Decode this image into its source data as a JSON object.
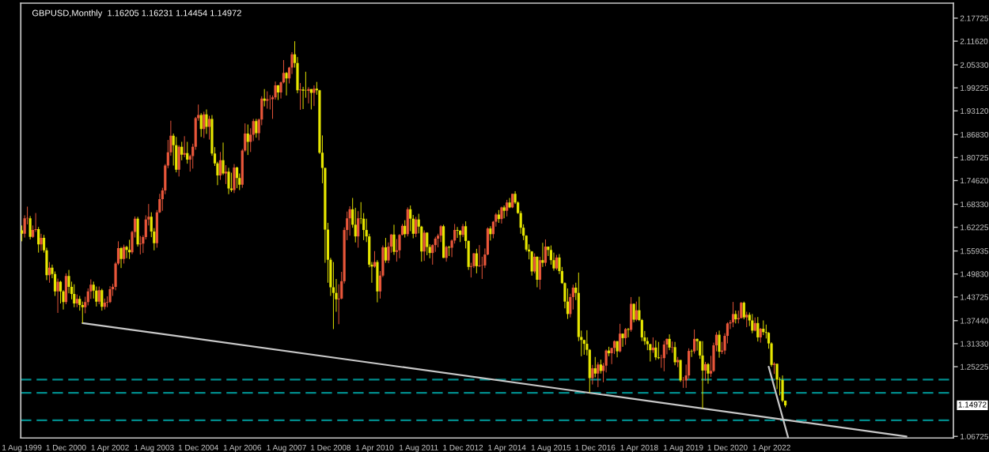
{
  "chart_data": {
    "type": "candlestick",
    "title": "GBPUSD,Monthly  1.16205 1.16231 1.14454 1.14972",
    "x": [
      "1999-08",
      "1999-09",
      "1999-10",
      "1999-11",
      "1999-12",
      "2000-01",
      "2000-02",
      "2000-03",
      "2000-04",
      "2000-05",
      "2000-06",
      "2000-07",
      "2000-08",
      "2000-09",
      "2000-10",
      "2000-11",
      "2000-12",
      "2001-01",
      "2001-02",
      "2001-03",
      "2001-04",
      "2001-05",
      "2001-06",
      "2001-07",
      "2001-08",
      "2001-09",
      "2001-10",
      "2001-11",
      "2001-12",
      "2002-01",
      "2002-02",
      "2002-03",
      "2002-04",
      "2002-05",
      "2002-06",
      "2002-07",
      "2002-08",
      "2002-09",
      "2002-10",
      "2002-11",
      "2002-12",
      "2003-01",
      "2003-02",
      "2003-03",
      "2003-04",
      "2003-05",
      "2003-06",
      "2003-07",
      "2003-08",
      "2003-09",
      "2003-10",
      "2003-11",
      "2003-12",
      "2004-01",
      "2004-02",
      "2004-03",
      "2004-04",
      "2004-05",
      "2004-06",
      "2004-07",
      "2004-08",
      "2004-09",
      "2004-10",
      "2004-11",
      "2004-12",
      "2005-01",
      "2005-02",
      "2005-03",
      "2005-04",
      "2005-05",
      "2005-06",
      "2005-07",
      "2005-08",
      "2005-09",
      "2005-10",
      "2005-11",
      "2005-12",
      "2006-01",
      "2006-02",
      "2006-03",
      "2006-04",
      "2006-05",
      "2006-06",
      "2006-07",
      "2006-08",
      "2006-09",
      "2006-10",
      "2006-11",
      "2006-12",
      "2007-01",
      "2007-02",
      "2007-03",
      "2007-04",
      "2007-05",
      "2007-06",
      "2007-07",
      "2007-08",
      "2007-09",
      "2007-10",
      "2007-11",
      "2007-12",
      "2008-01",
      "2008-02",
      "2008-03",
      "2008-04",
      "2008-05",
      "2008-06",
      "2008-07",
      "2008-08",
      "2008-09",
      "2008-10",
      "2008-11",
      "2008-12",
      "2009-01",
      "2009-02",
      "2009-03",
      "2009-04",
      "2009-05",
      "2009-06",
      "2009-07",
      "2009-08",
      "2009-09",
      "2009-10",
      "2009-11",
      "2009-12",
      "2010-01",
      "2010-02",
      "2010-03",
      "2010-04",
      "2010-05",
      "2010-06",
      "2010-07",
      "2010-08",
      "2010-09",
      "2010-10",
      "2010-11",
      "2010-12",
      "2011-01",
      "2011-02",
      "2011-03",
      "2011-04",
      "2011-05",
      "2011-06",
      "2011-07",
      "2011-08",
      "2011-09",
      "2011-10",
      "2011-11",
      "2011-12",
      "2012-01",
      "2012-02",
      "2012-03",
      "2012-04",
      "2012-05",
      "2012-06",
      "2012-07",
      "2012-08",
      "2012-09",
      "2012-10",
      "2012-11",
      "2012-12",
      "2013-01",
      "2013-02",
      "2013-03",
      "2013-04",
      "2013-05",
      "2013-06",
      "2013-07",
      "2013-08",
      "2013-09",
      "2013-10",
      "2013-11",
      "2013-12",
      "2014-01",
      "2014-02",
      "2014-03",
      "2014-04",
      "2014-05",
      "2014-06",
      "2014-07",
      "2014-08",
      "2014-09",
      "2014-10",
      "2014-11",
      "2014-12",
      "2015-01",
      "2015-02",
      "2015-03",
      "2015-04",
      "2015-05",
      "2015-06",
      "2015-07",
      "2015-08",
      "2015-09",
      "2015-10",
      "2015-11",
      "2015-12",
      "2016-01",
      "2016-02",
      "2016-03",
      "2016-04",
      "2016-05",
      "2016-06",
      "2016-07",
      "2016-08",
      "2016-09",
      "2016-10",
      "2016-11",
      "2016-12",
      "2017-01",
      "2017-02",
      "2017-03",
      "2017-04",
      "2017-05",
      "2017-06",
      "2017-07",
      "2017-08",
      "2017-09",
      "2017-10",
      "2017-11",
      "2017-12",
      "2018-01",
      "2018-02",
      "2018-03",
      "2018-04",
      "2018-05",
      "2018-06",
      "2018-07",
      "2018-08",
      "2018-09",
      "2018-10",
      "2018-11",
      "2018-12",
      "2019-01",
      "2019-02",
      "2019-03",
      "2019-04",
      "2019-05",
      "2019-06",
      "2019-07",
      "2019-08",
      "2019-09",
      "2019-10",
      "2019-11",
      "2019-12",
      "2020-01",
      "2020-02",
      "2020-03",
      "2020-04",
      "2020-05",
      "2020-06",
      "2020-07",
      "2020-08",
      "2020-09",
      "2020-10",
      "2020-11",
      "2020-12",
      "2021-01",
      "2021-02",
      "2021-03",
      "2021-04",
      "2021-05",
      "2021-06",
      "2021-07",
      "2021-08",
      "2021-09",
      "2021-10",
      "2021-11",
      "2021-12",
      "2022-01",
      "2022-02",
      "2022-03",
      "2022-04",
      "2022-05",
      "2022-06",
      "2022-07",
      "2022-08",
      "2022-09"
    ],
    "ohlc": [
      [
        1.614,
        1.627,
        1.585,
        1.605
      ],
      [
        1.605,
        1.654,
        1.595,
        1.646
      ],
      [
        1.646,
        1.677,
        1.63,
        1.646
      ],
      [
        1.646,
        1.652,
        1.59,
        1.597
      ],
      [
        1.597,
        1.627,
        1.594,
        1.615
      ],
      [
        1.615,
        1.66,
        1.61,
        1.617
      ],
      [
        1.617,
        1.623,
        1.555,
        1.577
      ],
      [
        1.577,
        1.605,
        1.56,
        1.594
      ],
      [
        1.594,
        1.602,
        1.555,
        1.561
      ],
      [
        1.561,
        1.568,
        1.482,
        1.495
      ],
      [
        1.495,
        1.53,
        1.475,
        1.515
      ],
      [
        1.515,
        1.523,
        1.487,
        1.498
      ],
      [
        1.498,
        1.505,
        1.44,
        1.452
      ],
      [
        1.452,
        1.486,
        1.395,
        1.478
      ],
      [
        1.478,
        1.48,
        1.42,
        1.452
      ],
      [
        1.452,
        1.455,
        1.404,
        1.424
      ],
      [
        1.424,
        1.5,
        1.418,
        1.493
      ],
      [
        1.493,
        1.509,
        1.447,
        1.464
      ],
      [
        1.464,
        1.478,
        1.431,
        1.445
      ],
      [
        1.445,
        1.471,
        1.41,
        1.42
      ],
      [
        1.42,
        1.444,
        1.41,
        1.432
      ],
      [
        1.432,
        1.44,
        1.401,
        1.416
      ],
      [
        1.416,
        1.425,
        1.368,
        1.41
      ],
      [
        1.41,
        1.438,
        1.394,
        1.424
      ],
      [
        1.424,
        1.46,
        1.415,
        1.452
      ],
      [
        1.452,
        1.484,
        1.432,
        1.47
      ],
      [
        1.47,
        1.478,
        1.433,
        1.454
      ],
      [
        1.454,
        1.465,
        1.412,
        1.425
      ],
      [
        1.425,
        1.465,
        1.418,
        1.455
      ],
      [
        1.455,
        1.459,
        1.401,
        1.411
      ],
      [
        1.411,
        1.433,
        1.404,
        1.422
      ],
      [
        1.422,
        1.439,
        1.41,
        1.424
      ],
      [
        1.424,
        1.466,
        1.421,
        1.458
      ],
      [
        1.458,
        1.472,
        1.44,
        1.464
      ],
      [
        1.464,
        1.53,
        1.455,
        1.526
      ],
      [
        1.526,
        1.585,
        1.522,
        1.567
      ],
      [
        1.567,
        1.57,
        1.514,
        1.538
      ],
      [
        1.538,
        1.576,
        1.526,
        1.57
      ],
      [
        1.57,
        1.573,
        1.54,
        1.562
      ],
      [
        1.562,
        1.589,
        1.538,
        1.556
      ],
      [
        1.556,
        1.613,
        1.551,
        1.61
      ],
      [
        1.61,
        1.651,
        1.595,
        1.645
      ],
      [
        1.645,
        1.65,
        1.571,
        1.577
      ],
      [
        1.577,
        1.599,
        1.55,
        1.579
      ],
      [
        1.579,
        1.601,
        1.554,
        1.596
      ],
      [
        1.596,
        1.654,
        1.59,
        1.643
      ],
      [
        1.643,
        1.684,
        1.627,
        1.65
      ],
      [
        1.65,
        1.662,
        1.596,
        1.611
      ],
      [
        1.611,
        1.62,
        1.561,
        1.58
      ],
      [
        1.58,
        1.668,
        1.568,
        1.662
      ],
      [
        1.662,
        1.711,
        1.66,
        1.697
      ],
      [
        1.697,
        1.727,
        1.666,
        1.72
      ],
      [
        1.72,
        1.79,
        1.71,
        1.786
      ],
      [
        1.786,
        1.854,
        1.779,
        1.821
      ],
      [
        1.821,
        1.905,
        1.812,
        1.865
      ],
      [
        1.865,
        1.871,
        1.786,
        1.84
      ],
      [
        1.84,
        1.862,
        1.768,
        1.775
      ],
      [
        1.775,
        1.84,
        1.757,
        1.836
      ],
      [
        1.836,
        1.849,
        1.8,
        1.815
      ],
      [
        1.815,
        1.864,
        1.808,
        1.819
      ],
      [
        1.819,
        1.849,
        1.791,
        1.802
      ],
      [
        1.802,
        1.815,
        1.77,
        1.811
      ],
      [
        1.811,
        1.844,
        1.778,
        1.836
      ],
      [
        1.836,
        1.915,
        1.828,
        1.912
      ],
      [
        1.912,
        1.948,
        1.905,
        1.92
      ],
      [
        1.92,
        1.925,
        1.862,
        1.883
      ],
      [
        1.883,
        1.929,
        1.859,
        1.922
      ],
      [
        1.922,
        1.935,
        1.87,
        1.889
      ],
      [
        1.889,
        1.918,
        1.855,
        1.91
      ],
      [
        1.91,
        1.92,
        1.812,
        1.818
      ],
      [
        1.818,
        1.835,
        1.785,
        1.792
      ],
      [
        1.792,
        1.796,
        1.734,
        1.76
      ],
      [
        1.76,
        1.822,
        1.748,
        1.8
      ],
      [
        1.8,
        1.847,
        1.761,
        1.765
      ],
      [
        1.765,
        1.787,
        1.737,
        1.77
      ],
      [
        1.77,
        1.78,
        1.71,
        1.725
      ],
      [
        1.725,
        1.767,
        1.716,
        1.721
      ],
      [
        1.721,
        1.79,
        1.713,
        1.781
      ],
      [
        1.781,
        1.783,
        1.726,
        1.753
      ],
      [
        1.753,
        1.765,
        1.721,
        1.735
      ],
      [
        1.735,
        1.83,
        1.727,
        1.826
      ],
      [
        1.826,
        1.898,
        1.822,
        1.871
      ],
      [
        1.871,
        1.895,
        1.814,
        1.849
      ],
      [
        1.849,
        1.885,
        1.822,
        1.868
      ],
      [
        1.868,
        1.91,
        1.851,
        1.904
      ],
      [
        1.904,
        1.91,
        1.86,
        1.872
      ],
      [
        1.872,
        1.911,
        1.853,
        1.908
      ],
      [
        1.908,
        1.97,
        1.893,
        1.964
      ],
      [
        1.964,
        1.989,
        1.943,
        1.958
      ],
      [
        1.958,
        1.983,
        1.937,
        1.962
      ],
      [
        1.962,
        1.973,
        1.935,
        1.962
      ],
      [
        1.962,
        1.972,
        1.91,
        1.967
      ],
      [
        1.967,
        2.009,
        1.961,
        1.999
      ],
      [
        1.999,
        2.0,
        1.96,
        1.98
      ],
      [
        1.98,
        2.009,
        1.964,
        2.007
      ],
      [
        2.007,
        2.066,
        2.004,
        2.032
      ],
      [
        2.032,
        2.034,
        1.972,
        2.017
      ],
      [
        2.017,
        2.048,
        2.004,
        2.046
      ],
      [
        2.046,
        2.087,
        2.029,
        2.081
      ],
      [
        2.081,
        2.116,
        2.046,
        2.058
      ],
      [
        2.058,
        2.074,
        1.978,
        1.986
      ],
      [
        1.986,
        2.005,
        1.934,
        1.988
      ],
      [
        1.988,
        1.995,
        1.936,
        1.985
      ],
      [
        1.985,
        2.035,
        1.966,
        1.984
      ],
      [
        1.984,
        1.994,
        1.951,
        1.989
      ],
      [
        1.989,
        1.989,
        1.935,
        1.979
      ],
      [
        1.979,
        1.999,
        1.944,
        1.99
      ],
      [
        1.99,
        2.008,
        1.974,
        1.986
      ],
      [
        1.986,
        1.987,
        1.817,
        1.82
      ],
      [
        1.82,
        1.866,
        1.739,
        1.78
      ],
      [
        1.78,
        1.78,
        1.528,
        1.616
      ],
      [
        1.616,
        1.634,
        1.475,
        1.536
      ],
      [
        1.536,
        1.541,
        1.44,
        1.463
      ],
      [
        1.463,
        1.53,
        1.352,
        1.448
      ],
      [
        1.448,
        1.485,
        1.398,
        1.431
      ],
      [
        1.431,
        1.471,
        1.365,
        1.433
      ],
      [
        1.433,
        1.504,
        1.431,
        1.479
      ],
      [
        1.479,
        1.622,
        1.473,
        1.615
      ],
      [
        1.615,
        1.664,
        1.588,
        1.646
      ],
      [
        1.646,
        1.678,
        1.6,
        1.67
      ],
      [
        1.67,
        1.7,
        1.621,
        1.629
      ],
      [
        1.629,
        1.674,
        1.582,
        1.598
      ],
      [
        1.598,
        1.665,
        1.568,
        1.646
      ],
      [
        1.646,
        1.689,
        1.631,
        1.645
      ],
      [
        1.645,
        1.66,
        1.588,
        1.615
      ],
      [
        1.615,
        1.645,
        1.583,
        1.598
      ],
      [
        1.598,
        1.605,
        1.516,
        1.523
      ],
      [
        1.523,
        1.53,
        1.475,
        1.518
      ],
      [
        1.518,
        1.559,
        1.515,
        1.53
      ],
      [
        1.53,
        1.535,
        1.423,
        1.452
      ],
      [
        1.452,
        1.506,
        1.433,
        1.494
      ],
      [
        1.494,
        1.574,
        1.49,
        1.569
      ],
      [
        1.569,
        1.594,
        1.528,
        1.534
      ],
      [
        1.534,
        1.582,
        1.527,
        1.571
      ],
      [
        1.571,
        1.604,
        1.555,
        1.603
      ],
      [
        1.603,
        1.629,
        1.549,
        1.557
      ],
      [
        1.557,
        1.591,
        1.531,
        1.561
      ],
      [
        1.561,
        1.604,
        1.54,
        1.602
      ],
      [
        1.602,
        1.631,
        1.601,
        1.626
      ],
      [
        1.626,
        1.641,
        1.595,
        1.604
      ],
      [
        1.604,
        1.675,
        1.598,
        1.67
      ],
      [
        1.67,
        1.68,
        1.612,
        1.645
      ],
      [
        1.645,
        1.655,
        1.593,
        1.605
      ],
      [
        1.605,
        1.65,
        1.596,
        1.643
      ],
      [
        1.643,
        1.658,
        1.606,
        1.624
      ],
      [
        1.624,
        1.626,
        1.531,
        1.558
      ],
      [
        1.558,
        1.614,
        1.533,
        1.608
      ],
      [
        1.608,
        1.609,
        1.548,
        1.57
      ],
      [
        1.57,
        1.577,
        1.54,
        1.554
      ],
      [
        1.554,
        1.577,
        1.523,
        1.575
      ],
      [
        1.575,
        1.597,
        1.557,
        1.592
      ],
      [
        1.592,
        1.605,
        1.569,
        1.6
      ],
      [
        1.6,
        1.628,
        1.583,
        1.625
      ],
      [
        1.625,
        1.629,
        1.541,
        1.541
      ],
      [
        1.541,
        1.573,
        1.531,
        1.57
      ],
      [
        1.57,
        1.573,
        1.546,
        1.568
      ],
      [
        1.568,
        1.59,
        1.543,
        1.587
      ],
      [
        1.587,
        1.631,
        1.579,
        1.615
      ],
      [
        1.615,
        1.623,
        1.594,
        1.613
      ],
      [
        1.613,
        1.615,
        1.583,
        1.602
      ],
      [
        1.602,
        1.631,
        1.596,
        1.625
      ],
      [
        1.625,
        1.638,
        1.566,
        1.586
      ],
      [
        1.586,
        1.587,
        1.509,
        1.517
      ],
      [
        1.517,
        1.528,
        1.489,
        1.519
      ],
      [
        1.519,
        1.554,
        1.514,
        1.553
      ],
      [
        1.553,
        1.565,
        1.5,
        1.519
      ],
      [
        1.519,
        1.575,
        1.517,
        1.521
      ],
      [
        1.521,
        1.544,
        1.485,
        1.521
      ],
      [
        1.521,
        1.566,
        1.514,
        1.55
      ],
      [
        1.55,
        1.622,
        1.548,
        1.619
      ],
      [
        1.619,
        1.625,
        1.587,
        1.604
      ],
      [
        1.604,
        1.639,
        1.593,
        1.637
      ],
      [
        1.637,
        1.66,
        1.624,
        1.656
      ],
      [
        1.656,
        1.668,
        1.634,
        1.644
      ],
      [
        1.644,
        1.677,
        1.632,
        1.675
      ],
      [
        1.675,
        1.68,
        1.646,
        1.666
      ],
      [
        1.666,
        1.695,
        1.651,
        1.688
      ],
      [
        1.688,
        1.7,
        1.673,
        1.675
      ],
      [
        1.675,
        1.711,
        1.673,
        1.711
      ],
      [
        1.711,
        1.718,
        1.684,
        1.688
      ],
      [
        1.688,
        1.691,
        1.658,
        1.66
      ],
      [
        1.66,
        1.666,
        1.605,
        1.621
      ],
      [
        1.621,
        1.63,
        1.588,
        1.6
      ],
      [
        1.6,
        1.601,
        1.558,
        1.563
      ],
      [
        1.563,
        1.577,
        1.537,
        1.558
      ],
      [
        1.558,
        1.559,
        1.494,
        1.505
      ],
      [
        1.505,
        1.553,
        1.5,
        1.544
      ],
      [
        1.544,
        1.545,
        1.463,
        1.483
      ],
      [
        1.483,
        1.544,
        1.457,
        1.535
      ],
      [
        1.535,
        1.581,
        1.517,
        1.528
      ],
      [
        1.528,
        1.59,
        1.519,
        1.571
      ],
      [
        1.571,
        1.571,
        1.546,
        1.562
      ],
      [
        1.562,
        1.574,
        1.523,
        1.535
      ],
      [
        1.535,
        1.555,
        1.507,
        1.513
      ],
      [
        1.513,
        1.549,
        1.509,
        1.542
      ],
      [
        1.542,
        1.551,
        1.498,
        1.506
      ],
      [
        1.506,
        1.517,
        1.472,
        1.474
      ],
      [
        1.474,
        1.476,
        1.407,
        1.425
      ],
      [
        1.425,
        1.46,
        1.379,
        1.392
      ],
      [
        1.392,
        1.446,
        1.383,
        1.437
      ],
      [
        1.437,
        1.47,
        1.404,
        1.462
      ],
      [
        1.462,
        1.475,
        1.429,
        1.448
      ],
      [
        1.448,
        1.502,
        1.32,
        1.331
      ],
      [
        1.331,
        1.348,
        1.28,
        1.323
      ],
      [
        1.323,
        1.324,
        1.284,
        1.313
      ],
      [
        1.313,
        1.349,
        1.282,
        1.297
      ],
      [
        1.297,
        1.299,
        1.184,
        1.222
      ],
      [
        1.222,
        1.257,
        1.205,
        1.248
      ],
      [
        1.248,
        1.278,
        1.224,
        1.234
      ],
      [
        1.234,
        1.264,
        1.198,
        1.258
      ],
      [
        1.258,
        1.271,
        1.234,
        1.241
      ],
      [
        1.241,
        1.262,
        1.211,
        1.255
      ],
      [
        1.255,
        1.298,
        1.237,
        1.295
      ],
      [
        1.295,
        1.305,
        1.28,
        1.288
      ],
      [
        1.288,
        1.302,
        1.259,
        1.302
      ],
      [
        1.302,
        1.322,
        1.286,
        1.32
      ],
      [
        1.32,
        1.32,
        1.277,
        1.293
      ],
      [
        1.293,
        1.366,
        1.29,
        1.34
      ],
      [
        1.34,
        1.34,
        1.305,
        1.328
      ],
      [
        1.328,
        1.355,
        1.31,
        1.352
      ],
      [
        1.352,
        1.355,
        1.33,
        1.35
      ],
      [
        1.35,
        1.437,
        1.345,
        1.419
      ],
      [
        1.419,
        1.42,
        1.37,
        1.377
      ],
      [
        1.377,
        1.425,
        1.373,
        1.402
      ],
      [
        1.402,
        1.438,
        1.373,
        1.376
      ],
      [
        1.376,
        1.379,
        1.32,
        1.33
      ],
      [
        1.33,
        1.347,
        1.31,
        1.32
      ],
      [
        1.32,
        1.33,
        1.296,
        1.312
      ],
      [
        1.312,
        1.313,
        1.266,
        1.296
      ],
      [
        1.296,
        1.33,
        1.289,
        1.303
      ],
      [
        1.303,
        1.322,
        1.27,
        1.277
      ],
      [
        1.277,
        1.318,
        1.272,
        1.275
      ],
      [
        1.275,
        1.284,
        1.249,
        1.275
      ],
      [
        1.275,
        1.321,
        1.24,
        1.311
      ],
      [
        1.311,
        1.327,
        1.285,
        1.326
      ],
      [
        1.326,
        1.338,
        1.296,
        1.303
      ],
      [
        1.303,
        1.319,
        1.289,
        1.304
      ],
      [
        1.304,
        1.318,
        1.256,
        1.264
      ],
      [
        1.264,
        1.278,
        1.251,
        1.27
      ],
      [
        1.27,
        1.27,
        1.212,
        1.216
      ],
      [
        1.216,
        1.225,
        1.196,
        1.216
      ],
      [
        1.216,
        1.258,
        1.196,
        1.229
      ],
      [
        1.229,
        1.301,
        1.22,
        1.294
      ],
      [
        1.294,
        1.298,
        1.278,
        1.293
      ],
      [
        1.293,
        1.351,
        1.287,
        1.326
      ],
      [
        1.326,
        1.327,
        1.295,
        1.32
      ],
      [
        1.32,
        1.32,
        1.273,
        1.282
      ],
      [
        1.282,
        1.32,
        1.141,
        1.242
      ],
      [
        1.242,
        1.265,
        1.215,
        1.259
      ],
      [
        1.259,
        1.262,
        1.207,
        1.234
      ],
      [
        1.234,
        1.281,
        1.225,
        1.241
      ],
      [
        1.241,
        1.316,
        1.238,
        1.309
      ],
      [
        1.309,
        1.344,
        1.293,
        1.337
      ],
      [
        1.337,
        1.348,
        1.276,
        1.292
      ],
      [
        1.292,
        1.318,
        1.286,
        1.295
      ],
      [
        1.295,
        1.341,
        1.285,
        1.334
      ],
      [
        1.334,
        1.37,
        1.314,
        1.367
      ],
      [
        1.367,
        1.376,
        1.352,
        1.37
      ],
      [
        1.37,
        1.424,
        1.357,
        1.392
      ],
      [
        1.392,
        1.401,
        1.367,
        1.378
      ],
      [
        1.378,
        1.401,
        1.367,
        1.381
      ],
      [
        1.381,
        1.424,
        1.381,
        1.422
      ],
      [
        1.422,
        1.425,
        1.378,
        1.383
      ],
      [
        1.383,
        1.398,
        1.357,
        1.39
      ],
      [
        1.39,
        1.396,
        1.36,
        1.375
      ],
      [
        1.375,
        1.392,
        1.341,
        1.348
      ],
      [
        1.348,
        1.383,
        1.346,
        1.368
      ],
      [
        1.368,
        1.384,
        1.319,
        1.33
      ],
      [
        1.33,
        1.355,
        1.316,
        1.353
      ],
      [
        1.353,
        1.375,
        1.336,
        1.344
      ],
      [
        1.344,
        1.364,
        1.327,
        1.342
      ],
      [
        1.342,
        1.344,
        1.3,
        1.314
      ],
      [
        1.314,
        1.317,
        1.252,
        1.257
      ],
      [
        1.257,
        1.264,
        1.233,
        1.26
      ],
      [
        1.26,
        1.26,
        1.193,
        1.218
      ],
      [
        1.218,
        1.224,
        1.176,
        1.217
      ],
      [
        1.217,
        1.229,
        1.158,
        1.162
      ],
      [
        1.16205,
        1.16231,
        1.14454,
        1.14972
      ]
    ],
    "colors": [
      "#e6e600",
      "#e8563a",
      "#e8563a",
      "#e6e600",
      "#e8563a",
      "#e8563a",
      "#e6e600",
      "#e8563a",
      "#e6e600",
      "#e6e600",
      "#e8563a",
      "#e6e600",
      "#e6e600",
      "#e8563a",
      "#e6e600",
      "#e6e600",
      "#e8563a",
      "#e6e600",
      "#e6e600",
      "#e6e600",
      "#e8563a",
      "#e6e600",
      "#e6e600",
      "#e8563a",
      "#e8563a",
      "#e8563a",
      "#e6e600",
      "#e6e600",
      "#e8563a",
      "#e6e600",
      "#e8563a",
      "#e8563a",
      "#e8563a",
      "#e8563a",
      "#e8563a",
      "#e8563a",
      "#e6e600",
      "#e8563a",
      "#e6e600",
      "#e6e600",
      "#e8563a",
      "#e8563a",
      "#e6e600",
      "#e8563a",
      "#e8563a",
      "#e8563a",
      "#e8563a",
      "#e6e600",
      "#e6e600",
      "#e8563a",
      "#e8563a",
      "#e8563a",
      "#e8563a",
      "#e8563a",
      "#e8563a",
      "#e6e600",
      "#e6e600",
      "#e8563a",
      "#e6e600",
      "#e8563a",
      "#e6e600",
      "#e8563a",
      "#e8563a",
      "#e8563a",
      "#e8563a",
      "#e6e600",
      "#e8563a",
      "#e6e600",
      "#e8563a",
      "#e6e600",
      "#e6e600",
      "#e6e600",
      "#e8563a",
      "#e6e600",
      "#e8563a",
      "#e6e600",
      "#e6e600",
      "#e8563a",
      "#e6e600",
      "#e6e600",
      "#e8563a",
      "#e8563a",
      "#e6e600",
      "#e8563a",
      "#e8563a",
      "#e6e600",
      "#e8563a",
      "#e8563a",
      "#e6e600",
      "#e8563a",
      "#e8563a",
      "#e8563a",
      "#e8563a",
      "#e6e600",
      "#e8563a",
      "#e8563a",
      "#e6e600",
      "#e8563a",
      "#e8563a",
      "#e6e600",
      "#e6e600",
      "#e8563a",
      "#e6e600",
      "#e6e600",
      "#e8563a",
      "#e6e600",
      "#e8563a",
      "#e6e600",
      "#e6e600",
      "#e6e600",
      "#e6e600",
      "#e6e600",
      "#e6e600",
      "#e6e600",
      "#e6e600",
      "#e8563a",
      "#e8563a",
      "#e8563a",
      "#e8563a",
      "#e8563a",
      "#e6e600",
      "#e6e600",
      "#e8563a",
      "#e6e600",
      "#e6e600",
      "#e6e600",
      "#e6e600",
      "#e6e600",
      "#e8563a",
      "#e6e600",
      "#e8563a",
      "#e8563a",
      "#e6e600",
      "#e8563a",
      "#e8563a",
      "#e6e600",
      "#e8563a",
      "#e8563a",
      "#e8563a",
      "#e6e600",
      "#e8563a",
      "#e6e600",
      "#e6e600",
      "#e8563a",
      "#e6e600",
      "#e6e600",
      "#e8563a",
      "#e6e600",
      "#e6e600",
      "#e8563a",
      "#e8563a",
      "#e8563a",
      "#e8563a",
      "#e6e600",
      "#e8563a",
      "#e6e600",
      "#e8563a",
      "#e8563a",
      "#e6e600",
      "#e6e600",
      "#e8563a",
      "#e6e600",
      "#e6e600",
      "#e8563a",
      "#e8563a",
      "#e6e600",
      "#e8563a",
      "#e8563a",
      "#e8563a",
      "#e8563a",
      "#e6e600",
      "#e8563a",
      "#e8563a",
      "#e6e600",
      "#e8563a",
      "#e6e600",
      "#e8563a",
      "#e6e600",
      "#e8563a",
      "#e6e600",
      "#e6e600",
      "#e6e600",
      "#e6e600",
      "#e6e600",
      "#e6e600",
      "#e6e600",
      "#e8563a",
      "#e6e600",
      "#e8563a",
      "#e6e600",
      "#e8563a",
      "#e6e600",
      "#e6e600",
      "#e6e600",
      "#e8563a",
      "#e6e600",
      "#e6e600",
      "#e6e600",
      "#e6e600",
      "#e8563a",
      "#e8563a",
      "#e6e600",
      "#e6e600",
      "#e6e600",
      "#e6e600",
      "#e6e600",
      "#e6e600",
      "#e8563a",
      "#e6e600",
      "#e8563a",
      "#e6e600",
      "#e8563a",
      "#e8563a",
      "#e6e600",
      "#e8563a",
      "#e8563a",
      "#e6e600",
      "#e8563a",
      "#e6e600",
      "#e8563a",
      "#e6e600",
      "#e8563a",
      "#e6e600",
      "#e8563a",
      "#e6e600",
      "#e6e600",
      "#e6e600",
      "#e6e600",
      "#e6e600",
      "#e8563a",
      "#e6e600",
      "#e6e600",
      "#e8563a",
      "#e8563a",
      "#e8563a",
      "#e6e600",
      "#e8563a",
      "#e6e600",
      "#e8563a",
      "#e6e600",
      "#e8563a",
      "#e8563a",
      "#e8563a",
      "#e6e600",
      "#e8563a",
      "#e6e600",
      "#e6e600",
      "#e6e600",
      "#e8563a",
      "#e6e600",
      "#e8563a",
      "#e8563a",
      "#e8563a",
      "#e6e600",
      "#e8563a",
      "#e8563a",
      "#e8563a",
      "#e8563a",
      "#e8563a",
      "#e6e600",
      "#e8563a",
      "#e8563a",
      "#e6e600",
      "#e8563a",
      "#e6e600",
      "#e6e600",
      "#e8563a",
      "#e6e600",
      "#e8563a",
      "#e6e600",
      "#e6e600",
      "#e6e600",
      "#e6e600",
      "#e8563a",
      "#e6e600",
      "#e6e600",
      "#e6e600",
      "#e6e600"
    ],
    "series": [
      {
        "type": "line",
        "color": "#c8c8c8",
        "x": [
          "2001-06",
          "2026-05"
        ],
        "values": [
          1.368,
          1.067
        ]
      },
      {
        "type": "line",
        "color": "#c8c8c8",
        "x": [
          "2022-03",
          "2022-10"
        ],
        "values": [
          1.252,
          1.065
        ]
      }
    ],
    "ref_lines": [
      {
        "axis": "y",
        "value": 1.218,
        "color": "#008b8b",
        "line_style": "dashed"
      },
      {
        "axis": "y",
        "value": 1.183,
        "color": "#008b8b",
        "line_style": "dashed"
      },
      {
        "axis": "y",
        "value": 1.11,
        "color": "#008b8b",
        "line_style": "dashed"
      }
    ],
    "annotations": [
      "1.14972"
    ],
    "xlim": [
      "1999-07-20",
      "2027-10"
    ],
    "xticks": [
      {
        "value": "1999-08",
        "label": "1 Aug 1999"
      },
      {
        "value": "2000-12",
        "label": "1 Dec 2000"
      },
      {
        "value": "2002-04",
        "label": "1 Apr 2002"
      },
      {
        "value": "2003-08",
        "label": "1 Aug 2003"
      },
      {
        "value": "2004-12",
        "label": "1 Dec 2004"
      },
      {
        "value": "2006-04",
        "label": "1 Apr 2006"
      },
      {
        "value": "2007-08",
        "label": "1 Aug 2007"
      },
      {
        "value": "2008-12",
        "label": "1 Dec 2008"
      },
      {
        "value": "2010-04",
        "label": "1 Apr 2010"
      },
      {
        "value": "2011-08",
        "label": "1 Aug 2011"
      },
      {
        "value": "2012-12",
        "label": "1 Dec 2012"
      },
      {
        "value": "2014-04",
        "label": "1 Apr 2014"
      },
      {
        "value": "2015-08",
        "label": "1 Aug 2015"
      },
      {
        "value": "2016-12",
        "label": "1 Dec 2016"
      },
      {
        "value": "2018-04",
        "label": "1 Apr 2018"
      },
      {
        "value": "2019-08",
        "label": "1 Aug 2019"
      },
      {
        "value": "2020-12",
        "label": "1 Dec 2020"
      },
      {
        "value": "2022-04",
        "label": "1 Apr 2022"
      }
    ],
    "ylim": [
      1.063,
      2.217
    ],
    "yticks": [
      {
        "value": 2.17725,
        "label": "2.17725"
      },
      {
        "value": 2.1162,
        "label": "2.11620"
      },
      {
        "value": 2.0533,
        "label": "2.05330"
      },
      {
        "value": 1.99225,
        "label": "1.99225"
      },
      {
        "value": 1.9312,
        "label": "1.93120"
      },
      {
        "value": 1.8683,
        "label": "1.86830"
      },
      {
        "value": 1.80725,
        "label": "1.80725"
      },
      {
        "value": 1.7462,
        "label": "1.74620"
      },
      {
        "value": 1.6833,
        "label": "1.68330"
      },
      {
        "value": 1.62225,
        "label": "1.62225"
      },
      {
        "value": 1.55935,
        "label": "1.55935"
      },
      {
        "value": 1.4983,
        "label": "1.49830"
      },
      {
        "value": 1.43725,
        "label": "1.43725"
      },
      {
        "value": 1.3744,
        "label": "1.37440"
      },
      {
        "value": 1.3133,
        "label": "1.31330"
      },
      {
        "value": 1.25225,
        "label": "1.25225"
      },
      {
        "value": 1.06725,
        "label": "1.06725"
      }
    ],
    "grid": false,
    "legend": false
  }
}
